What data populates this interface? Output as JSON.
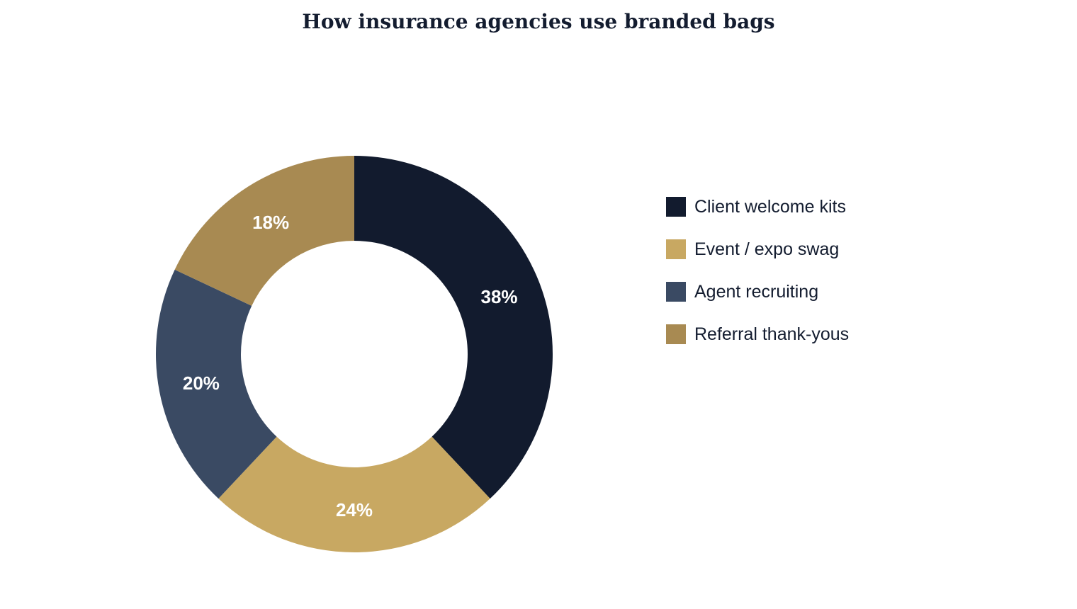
{
  "chart_data": {
    "type": "pie",
    "variant": "donut",
    "title": "How insurance agencies use branded bags",
    "categories": [
      "Client welcome kits",
      "Event / expo swag",
      "Agent recruiting",
      "Referral thank-yous"
    ],
    "values": [
      38,
      24,
      20,
      18
    ],
    "value_labels": [
      "38%",
      "24%",
      "20%",
      "18%"
    ],
    "colors": [
      "#121b2e",
      "#c8a862",
      "#3a4a63",
      "#a88a52"
    ],
    "legend_position": "right"
  }
}
